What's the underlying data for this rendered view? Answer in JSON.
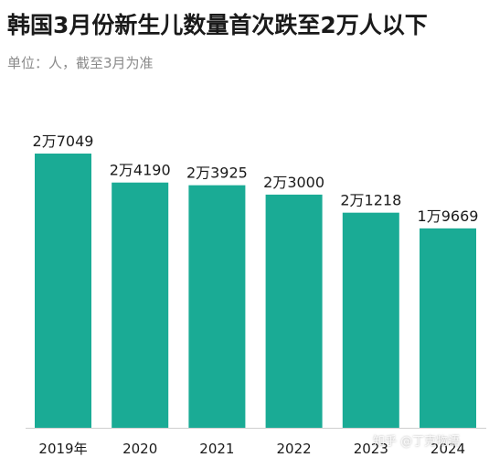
{
  "title": "韩国3月份新生儿数量首次跌至2万人以下",
  "subtitle": "单位：人，截至3月为准",
  "watermark": "知乎 @丁克物语",
  "colors": {
    "bar": "#1aab95",
    "axis": "#cfcfcf",
    "text": "#1a1a1a"
  },
  "chart_data": {
    "type": "bar",
    "categories": [
      "2019年",
      "2020",
      "2021",
      "2022",
      "2023",
      "2024"
    ],
    "values": [
      27049,
      24190,
      23925,
      23000,
      21218,
      19669
    ],
    "data_labels": [
      "2万7049",
      "2万4190",
      "2万3925",
      "2万3000",
      "2万1218",
      "1万9669"
    ],
    "title": "韩国3月份新生儿数量首次跌至2万人以下",
    "ylim": [
      0,
      27049
    ],
    "grid": false
  }
}
